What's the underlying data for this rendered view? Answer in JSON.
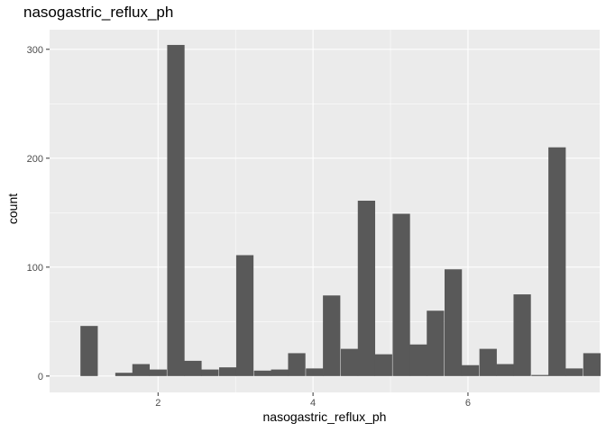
{
  "chart_data": {
    "type": "bar",
    "title": "nasogastric_reflux_ph",
    "xlabel": "nasogastric_reflux_ph",
    "ylabel": "count",
    "xlim": [
      0.6,
      7.7
    ],
    "ylim": [
      -15,
      318
    ],
    "xticks": [
      2,
      4,
      6
    ],
    "yticks": [
      0,
      100,
      200,
      300
    ],
    "bin_width": 0.224,
    "bins": [
      {
        "x": 1.11,
        "count": 46
      },
      {
        "x": 1.33,
        "count": 0
      },
      {
        "x": 1.56,
        "count": 3
      },
      {
        "x": 1.78,
        "count": 11
      },
      {
        "x": 2.0,
        "count": 6
      },
      {
        "x": 2.23,
        "count": 304
      },
      {
        "x": 2.45,
        "count": 14
      },
      {
        "x": 2.67,
        "count": 6
      },
      {
        "x": 2.9,
        "count": 8
      },
      {
        "x": 3.12,
        "count": 111
      },
      {
        "x": 3.35,
        "count": 5
      },
      {
        "x": 3.57,
        "count": 6
      },
      {
        "x": 3.79,
        "count": 21
      },
      {
        "x": 4.02,
        "count": 7
      },
      {
        "x": 4.24,
        "count": 74
      },
      {
        "x": 4.47,
        "count": 25
      },
      {
        "x": 4.69,
        "count": 161
      },
      {
        "x": 4.91,
        "count": 20
      },
      {
        "x": 5.14,
        "count": 149
      },
      {
        "x": 5.36,
        "count": 29
      },
      {
        "x": 5.58,
        "count": 60
      },
      {
        "x": 5.81,
        "count": 98
      },
      {
        "x": 6.03,
        "count": 10
      },
      {
        "x": 6.26,
        "count": 25
      },
      {
        "x": 6.48,
        "count": 11
      },
      {
        "x": 6.7,
        "count": 75
      },
      {
        "x": 6.93,
        "count": 1
      },
      {
        "x": 7.15,
        "count": 210
      },
      {
        "x": 7.37,
        "count": 7
      },
      {
        "x": 7.6,
        "count": 21
      }
    ],
    "colors": {
      "panel": "#EBEBEB",
      "bar": "#595959",
      "grid_major": "#FFFFFF",
      "text": "#4D4D4D"
    },
    "grid": true,
    "legend": "none"
  }
}
